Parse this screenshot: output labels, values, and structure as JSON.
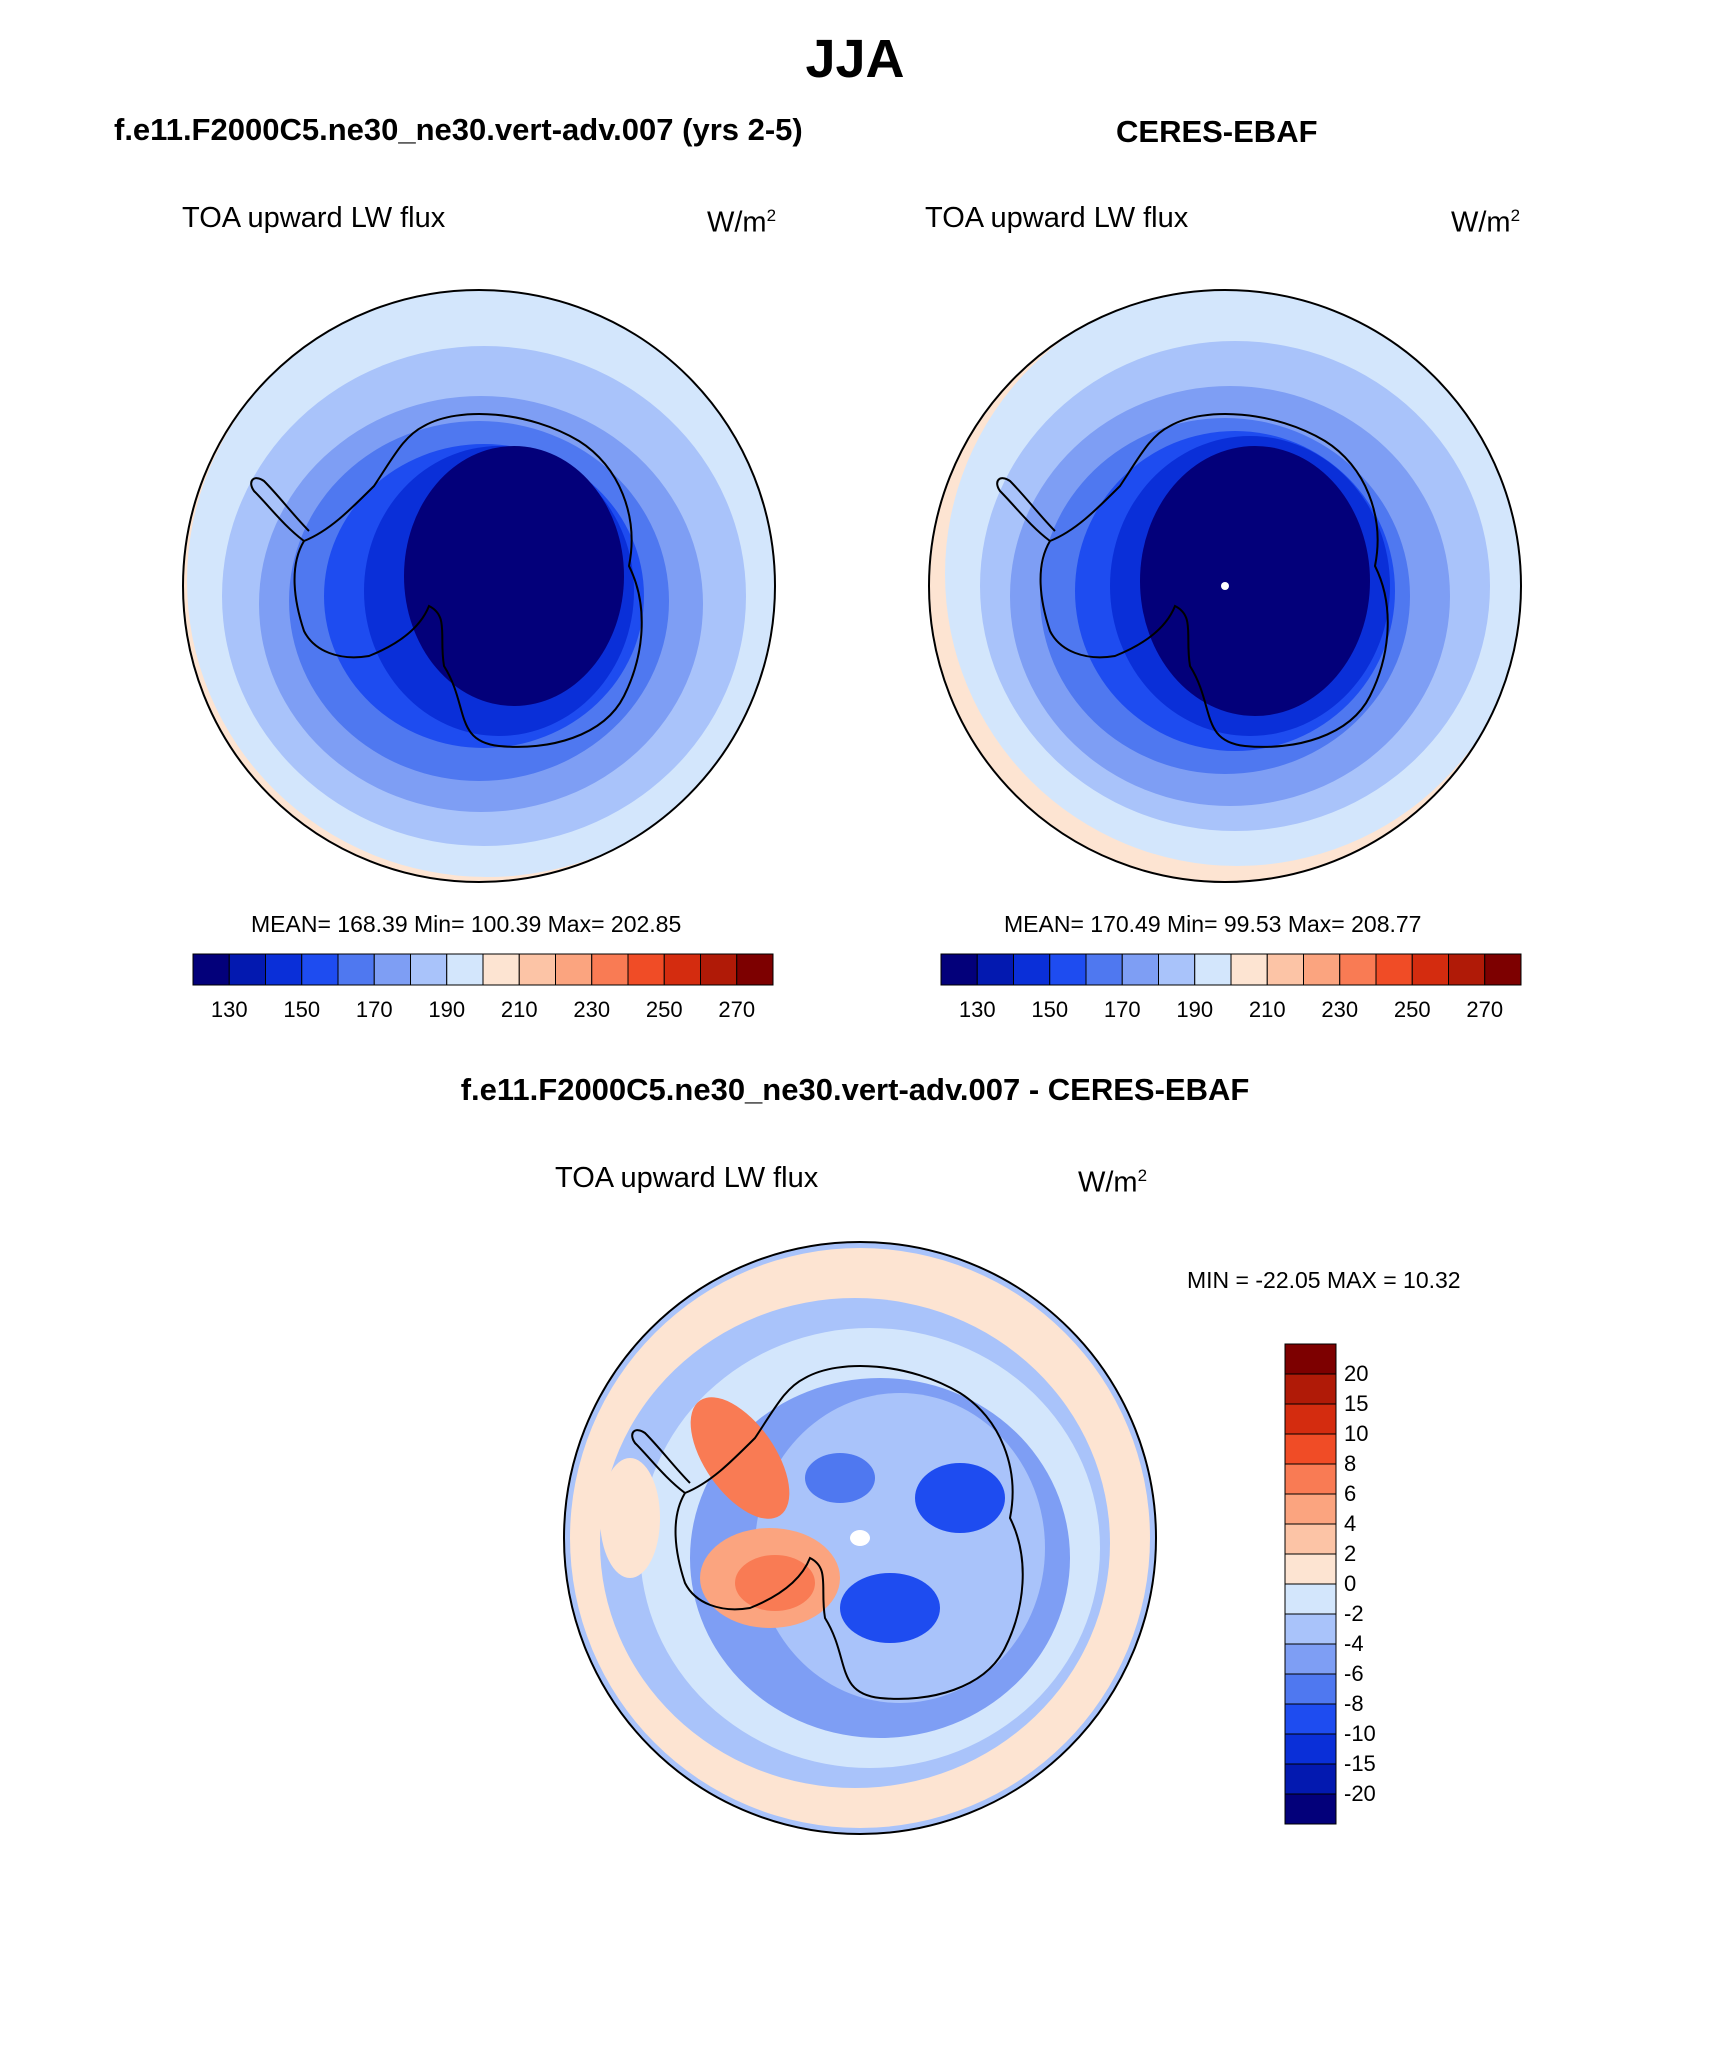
{
  "figure": {
    "season": "JJA",
    "model_title": "f.e11.F2000C5.ne30_ne30.vert-adv.007 (yrs 2-5)",
    "obs_title": "CERES-EBAF",
    "diff_title": "f.e11.F2000C5.ne30_ne30.vert-adv.007 - CERES-EBAF"
  },
  "panels": {
    "model": {
      "variable": "TOA upward LW flux",
      "units_base": "W/m",
      "units_exp": "2",
      "stats": "MEAN= 168.39  Min= 100.39  Max= 202.85"
    },
    "obs": {
      "variable": "TOA upward LW flux",
      "units_base": "W/m",
      "units_exp": "2",
      "stats": "MEAN= 170.49  Min=  99.53  Max= 208.77"
    },
    "diff": {
      "variable": "TOA upward LW flux",
      "units_base": "W/m",
      "units_exp": "2",
      "stats": "MIN = -22.05 MAX =  10.32"
    }
  },
  "colorbars": {
    "abs_ticks": [
      "130",
      "150",
      "170",
      "190",
      "210",
      "230",
      "250",
      "270"
    ],
    "abs_colors": [
      "#03007a",
      "#0319b0",
      "#0a2fd8",
      "#1e4cf0",
      "#4f78f0",
      "#7e9ef4",
      "#a9c3fa",
      "#d3e6fc",
      "#fde4d2",
      "#fcc4a6",
      "#fba47f",
      "#f97b54",
      "#f04c26",
      "#d42c0f",
      "#b01a07",
      "#7d0000"
    ],
    "diff_ticks": [
      "20",
      "15",
      "10",
      "8",
      "6",
      "4",
      "2",
      "0",
      "-2",
      "-4",
      "-6",
      "-8",
      "-10",
      "-15",
      "-20"
    ],
    "diff_colors": [
      "#7d0000",
      "#b01a07",
      "#d42c0f",
      "#f04c26",
      "#f97b54",
      "#fba47f",
      "#fcc4a6",
      "#fde4d2",
      "#d3e6fc",
      "#a9c3fa",
      "#7e9ef4",
      "#4f78f0",
      "#1e4cf0",
      "#0a2fd8",
      "#0319b0",
      "#03007a"
    ]
  }
}
